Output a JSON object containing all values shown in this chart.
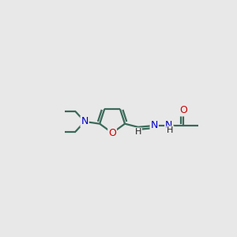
{
  "background_color": "#e8e8e8",
  "bond_color": "#3a6a5a",
  "N_color": "#0000cc",
  "O_color": "#cc0000",
  "bond_width": 1.6,
  "figsize": [
    3.0,
    3.0
  ],
  "dpi": 100,
  "xlim": [
    0,
    10
  ],
  "ylim": [
    2,
    8
  ],
  "font_size_atom": 9,
  "font_size_H": 8
}
